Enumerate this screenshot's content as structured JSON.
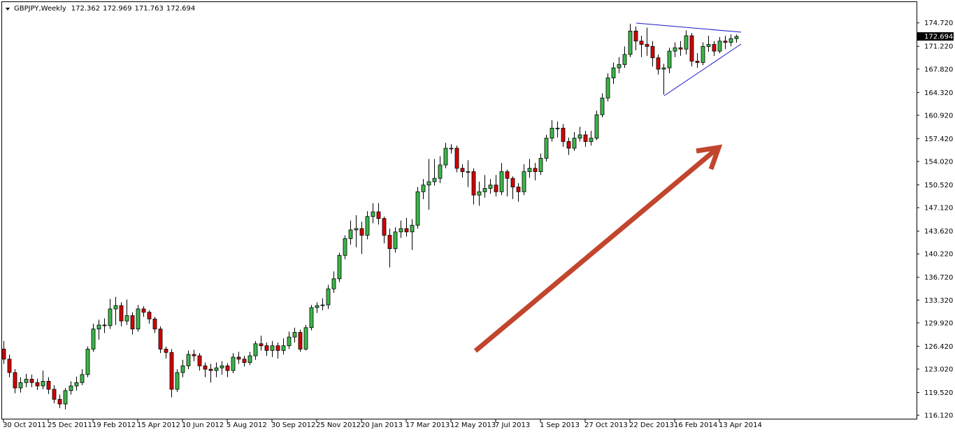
{
  "chart_data": {
    "type": "candlestick",
    "title": "GBPJPY,Weekly",
    "up_color": "#3cb64a",
    "down_color": "#d40000",
    "categories": [
      "30 Oct 2011",
      null,
      null,
      null,
      null,
      null,
      null,
      null,
      "25 Dec 2011",
      null,
      null,
      null,
      null,
      null,
      null,
      null,
      "19 Feb 2012",
      null,
      null,
      null,
      null,
      null,
      null,
      null,
      "15 Apr 2012",
      null,
      null,
      null,
      null,
      null,
      null,
      null,
      "10 Jun 2012",
      null,
      null,
      null,
      null,
      null,
      null,
      null,
      "5 Aug 2012",
      null,
      null,
      null,
      null,
      null,
      null,
      null,
      "30 Sep 2012",
      null,
      null,
      null,
      null,
      null,
      null,
      null,
      "25 Nov 2012",
      null,
      null,
      null,
      null,
      null,
      null,
      null,
      "20 Jan 2013",
      null,
      null,
      null,
      null,
      null,
      null,
      null,
      "17 Mar 2013",
      null,
      null,
      null,
      null,
      null,
      null,
      null,
      "12 May 2013",
      null,
      null,
      null,
      null,
      null,
      null,
      null,
      "7 Jul 2013",
      null,
      null,
      null,
      null,
      null,
      null,
      null,
      "1 Sep 2013",
      null,
      null,
      null,
      null,
      null,
      null,
      null,
      "27 Oct 2013",
      null,
      null,
      null,
      null,
      null,
      null,
      null,
      "22 Dec 2013",
      null,
      null,
      null,
      null,
      null,
      null,
      null,
      "16 Feb 2014",
      null,
      null,
      null,
      null,
      null,
      null,
      null,
      "13 Apr 2014",
      null,
      null,
      null
    ],
    "open": [
      126.0,
      124.5,
      122.5,
      120.2,
      121.0,
      121.5,
      121.0,
      120.5,
      121.2,
      120.0,
      118.5,
      117.8,
      119.8,
      120.5,
      121.0,
      122.2,
      126.0,
      129.0,
      129.6,
      129.5,
      132.0,
      132.5,
      130.2,
      131.0,
      129.0,
      132.0,
      131.5,
      130.5,
      129.0,
      126.0,
      125.5,
      120.0,
      122.5,
      123.5,
      125.2,
      125.0,
      123.5,
      123.0,
      122.8,
      123.2,
      123.5,
      122.8,
      124.8,
      124.5,
      124.0,
      125.0,
      126.8,
      126.5,
      125.8,
      126.5,
      125.8,
      126.5,
      127.8,
      128.5,
      126.0,
      129.2,
      132.2,
      132.5,
      132.6,
      135.0,
      136.5,
      140.0,
      142.5,
      143.8,
      144.0,
      143.0,
      145.8,
      146.5,
      145.5,
      143.0,
      141.0,
      143.5,
      144.0,
      143.5,
      144.5,
      149.5,
      150.5,
      151.0,
      151.5,
      153.5,
      156.0,
      156.0,
      153.0,
      152.5,
      152.5,
      149.0,
      149.5,
      150.0,
      150.5,
      149.5,
      152.5,
      151.5,
      150.2,
      149.5,
      152.5,
      153.0,
      152.5,
      154.5,
      157.5,
      159.0,
      159.0,
      157.0,
      156.0,
      157.5,
      158.0,
      157.0,
      157.5,
      161.0,
      163.5,
      166.5,
      168.0,
      168.5,
      170.0,
      173.5,
      172.0,
      171.5,
      171.2,
      169.5,
      167.8,
      168.0,
      170.5,
      171.0,
      170.8,
      172.8,
      169.0,
      168.8,
      171.2,
      171.5,
      170.5,
      172.0,
      171.8,
      172.362
    ],
    "high": [
      127.2,
      125.2,
      123.0,
      121.8,
      122.3,
      122.2,
      121.6,
      122.8,
      121.8,
      120.6,
      119.2,
      120.2,
      121.2,
      121.9,
      123.0,
      126.4,
      129.8,
      130.4,
      130.6,
      133.5,
      133.8,
      133.0,
      133.4,
      131.5,
      132.6,
      132.4,
      131.8,
      130.8,
      129.4,
      126.4,
      126.0,
      123.0,
      124.4,
      125.8,
      125.9,
      125.4,
      124.0,
      123.8,
      124.0,
      124.2,
      123.9,
      125.4,
      125.6,
      125.0,
      125.6,
      127.2,
      128.0,
      127.0,
      127.2,
      127.0,
      127.6,
      128.6,
      129.2,
      128.9,
      129.6,
      132.6,
      133.0,
      133.6,
      135.6,
      137.6,
      140.4,
      143.0,
      145.2,
      146.0,
      145.0,
      146.6,
      147.8,
      147.8,
      145.8,
      144.0,
      144.2,
      145.2,
      145.6,
      145.4,
      150.2,
      151.4,
      154.4,
      154.4,
      154.8,
      156.8,
      156.6,
      156.4,
      153.6,
      154.2,
      153.0,
      151.0,
      152.0,
      151.4,
      152.0,
      153.8,
      152.8,
      151.8,
      150.8,
      153.6,
      154.4,
      153.8,
      155.2,
      158.0,
      160.2,
      160.0,
      159.6,
      157.6,
      158.4,
      159.2,
      158.6,
      158.6,
      161.6,
      164.2,
      167.2,
      168.8,
      169.6,
      171.2,
      174.6,
      174.2,
      172.8,
      174.0,
      172.0,
      170.0,
      168.6,
      171.0,
      171.8,
      172.0,
      173.6,
      173.2,
      170.2,
      171.8,
      172.8,
      172.0,
      172.6,
      172.8,
      173.0,
      172.969
    ],
    "low": [
      123.8,
      121.8,
      119.4,
      119.5,
      120.3,
      120.3,
      119.9,
      120.0,
      119.3,
      117.9,
      117.2,
      117.0,
      119.2,
      119.8,
      120.6,
      121.8,
      125.6,
      127.4,
      128.4,
      129.0,
      129.6,
      129.4,
      129.6,
      128.2,
      128.6,
      130.8,
      129.8,
      128.4,
      125.4,
      124.6,
      118.8,
      119.6,
      121.8,
      123.0,
      124.2,
      122.8,
      121.8,
      121.0,
      121.8,
      122.2,
      121.8,
      122.4,
      123.8,
      123.4,
      123.6,
      124.4,
      125.8,
      125.0,
      124.8,
      124.6,
      125.2,
      126.0,
      127.0,
      125.6,
      125.8,
      128.8,
      131.4,
      131.8,
      132.0,
      134.4,
      136.0,
      139.4,
      141.6,
      141.2,
      140.2,
      142.4,
      144.8,
      144.6,
      141.8,
      138.2,
      140.4,
      142.6,
      142.8,
      140.8,
      144.0,
      148.4,
      146.8,
      150.4,
      150.8,
      153.0,
      155.2,
      152.4,
      151.6,
      150.2,
      147.6,
      147.4,
      148.6,
      149.2,
      148.8,
      149.0,
      148.8,
      148.4,
      148.0,
      149.0,
      151.6,
      151.2,
      152.0,
      154.0,
      157.0,
      157.6,
      156.2,
      155.0,
      155.6,
      157.0,
      156.2,
      156.4,
      157.2,
      160.6,
      163.0,
      165.6,
      167.2,
      168.0,
      169.6,
      170.6,
      169.6,
      169.8,
      168.2,
      167.0,
      164.0,
      167.2,
      169.6,
      169.8,
      170.0,
      168.2,
      168.0,
      168.4,
      170.4,
      169.8,
      170.2,
      170.8,
      171.2,
      171.763
    ],
    "close": [
      124.5,
      122.5,
      120.2,
      121.0,
      121.5,
      121.0,
      120.5,
      121.2,
      120.0,
      118.5,
      117.8,
      119.8,
      120.5,
      121.0,
      122.2,
      126.0,
      129.0,
      129.6,
      129.5,
      132.0,
      132.5,
      130.2,
      131.0,
      129.0,
      132.0,
      131.5,
      130.5,
      129.0,
      126.0,
      125.5,
      120.0,
      122.5,
      123.5,
      125.2,
      125.0,
      123.5,
      123.0,
      122.8,
      123.2,
      123.5,
      122.8,
      124.8,
      124.5,
      124.0,
      125.0,
      126.8,
      126.5,
      125.8,
      126.5,
      125.8,
      126.5,
      127.8,
      128.5,
      126.0,
      129.2,
      132.2,
      132.5,
      132.6,
      135.0,
      136.5,
      140.0,
      142.5,
      143.8,
      144.0,
      143.0,
      145.8,
      146.5,
      145.5,
      143.0,
      141.0,
      143.5,
      144.0,
      143.5,
      144.5,
      149.5,
      150.5,
      151.0,
      151.5,
      153.5,
      156.0,
      156.0,
      153.0,
      152.5,
      152.5,
      149.0,
      149.5,
      150.0,
      150.5,
      149.5,
      152.5,
      151.5,
      150.2,
      149.5,
      152.5,
      153.0,
      152.5,
      154.5,
      157.5,
      159.0,
      159.0,
      157.0,
      156.0,
      157.5,
      158.0,
      157.0,
      157.5,
      161.0,
      163.5,
      166.5,
      168.0,
      168.5,
      170.0,
      173.5,
      172.0,
      171.5,
      171.2,
      169.5,
      167.8,
      168.0,
      170.5,
      171.0,
      170.8,
      172.8,
      169.0,
      168.8,
      171.2,
      171.5,
      170.5,
      172.0,
      171.8,
      172.362,
      172.694
    ],
    "ylim": [
      115.5,
      177.3
    ],
    "yticks": [
      {
        "value": 116.12,
        "label": "116.120"
      },
      {
        "value": 119.52,
        "label": "119.520"
      },
      {
        "value": 123.02,
        "label": "123.020"
      },
      {
        "value": 126.42,
        "label": "126.420"
      },
      {
        "value": 129.92,
        "label": "129.920"
      },
      {
        "value": 133.32,
        "label": "133.320"
      },
      {
        "value": 136.72,
        "label": "136.720"
      },
      {
        "value": 140.22,
        "label": "140.220"
      },
      {
        "value": 143.62,
        "label": "143.620"
      },
      {
        "value": 147.12,
        "label": "147.120"
      },
      {
        "value": 150.52,
        "label": "150.520"
      },
      {
        "value": 154.02,
        "label": "154.020"
      },
      {
        "value": 157.42,
        "label": "157.420"
      },
      {
        "value": 160.92,
        "label": "160.920"
      },
      {
        "value": 164.32,
        "label": "164.320"
      },
      {
        "value": 167.82,
        "label": "167.820"
      },
      {
        "value": 171.22,
        "label": "171.220"
      },
      {
        "value": 174.72,
        "label": "174.720"
      }
    ]
  }
}
